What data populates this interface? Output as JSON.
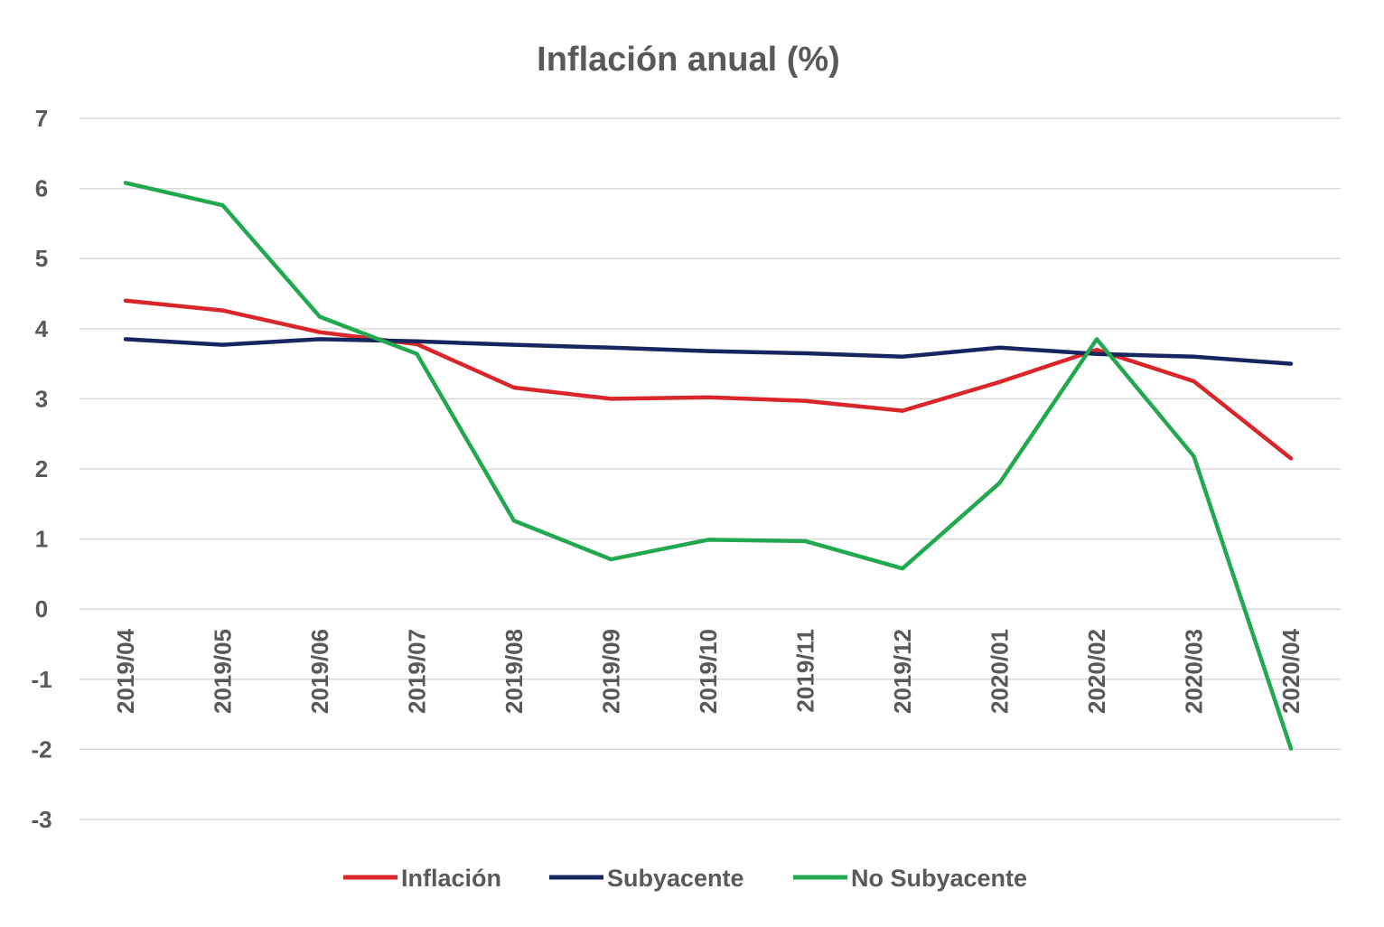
{
  "chart_data": {
    "type": "line",
    "title": "Inflación anual (%)",
    "xlabel": "",
    "ylabel": "",
    "ylim": [
      -3,
      7
    ],
    "yticks": [
      "7",
      "6",
      "5",
      "4",
      "3",
      "2",
      "1",
      "0",
      "-1",
      "-2",
      "-3"
    ],
    "grid": true,
    "legend_position": "bottom",
    "categories": [
      "2019/04",
      "2019/05",
      "2019/06",
      "2019/07",
      "2019/08",
      "2019/09",
      "2019/10",
      "2019/11",
      "2019/12",
      "2020/01",
      "2020/02",
      "2020/03",
      "2020/04"
    ],
    "series": [
      {
        "name": "Inflación",
        "color": "#d9262b",
        "values": [
          4.4,
          4.26,
          3.95,
          3.78,
          3.16,
          3.0,
          3.02,
          2.97,
          2.83,
          3.24,
          3.7,
          3.25,
          2.15
        ]
      },
      {
        "name": "Subyacente",
        "color": "#17265e",
        "values": [
          3.85,
          3.77,
          3.85,
          3.82,
          3.77,
          3.73,
          3.68,
          3.65,
          3.6,
          3.73,
          3.64,
          3.6,
          3.5
        ]
      },
      {
        "name": "No Subyacente",
        "color": "#22a84f",
        "values": [
          6.08,
          5.76,
          4.17,
          3.64,
          1.26,
          0.71,
          0.99,
          0.97,
          0.58,
          1.8,
          3.85,
          2.18,
          -1.99
        ]
      }
    ]
  }
}
